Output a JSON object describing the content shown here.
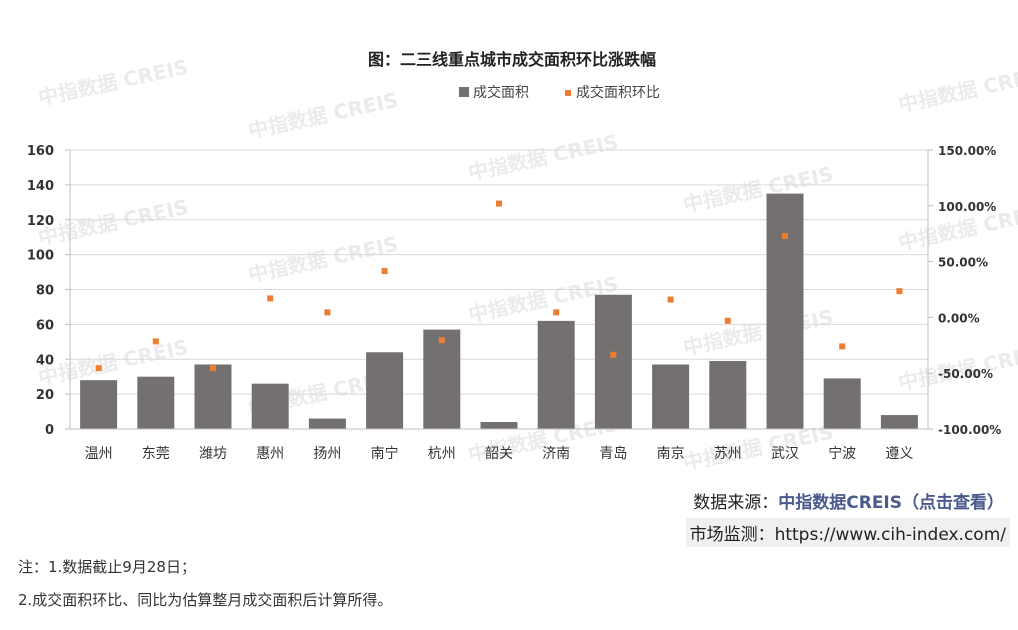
{
  "chart_data": {
    "type": "bar",
    "title": "图：二三线重点城市成交面积环比涨跌幅",
    "categories": [
      "温州",
      "东莞",
      "潍坊",
      "惠州",
      "扬州",
      "南宁",
      "杭州",
      "韶关",
      "济南",
      "青岛",
      "南京",
      "苏州",
      "武汉",
      "宁波",
      "遵义"
    ],
    "series": [
      {
        "name": "成交面积",
        "type": "bar",
        "axis": "left",
        "color": "#757070",
        "values": [
          28,
          30,
          37,
          26,
          6,
          44,
          57,
          4,
          62,
          77,
          37,
          39,
          135,
          29,
          8
        ]
      },
      {
        "name": "成交面积环比",
        "type": "scatter",
        "axis": "right",
        "color": "#ed7d31",
        "values": [
          -45.5,
          -21.5,
          -45.5,
          17,
          4.5,
          41.5,
          -20.5,
          102,
          4.5,
          -33.5,
          16,
          -3,
          73,
          -26,
          23.5
        ]
      }
    ],
    "y_left": {
      "min": 0,
      "max": 160,
      "ticks": [
        "0",
        "20",
        "40",
        "60",
        "80",
        "100",
        "120",
        "140",
        "160"
      ]
    },
    "y_right": {
      "min": -100,
      "max": 150,
      "ticks": [
        "-100.00%",
        "-50.00%",
        "0.00%",
        "50.00%",
        "100.00%",
        "150.00%"
      ]
    },
    "grid": true,
    "legend": "top-center"
  },
  "watermark": {
    "text_cn": "中指数据",
    "text_en": "CREIS"
  },
  "source": {
    "label": "数据来源：",
    "link": "中指数据CREIS（点击查看）"
  },
  "monitor": {
    "label": "市场监测：",
    "url": "https://www.cih-index.com/"
  },
  "notes": [
    "注：1.数据截止9月28日；",
    "2.成交面积环比、同比为估算整月成交面积后计算所得。"
  ]
}
